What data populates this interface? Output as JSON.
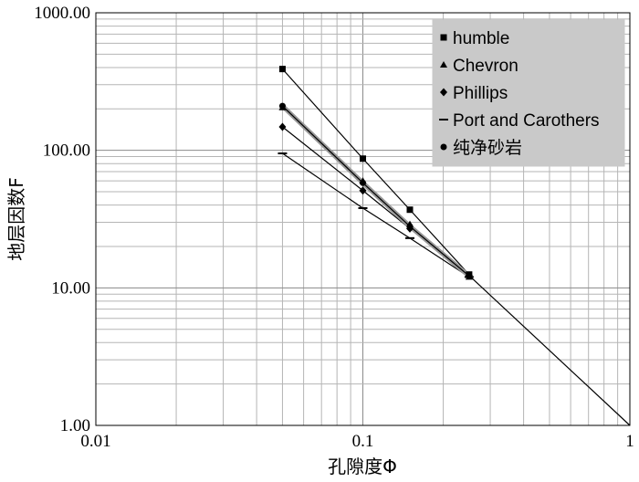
{
  "chart_data": {
    "type": "line",
    "xscale": "log",
    "yscale": "log",
    "xlim": [
      0.01,
      1
    ],
    "ylim": [
      1,
      1000
    ],
    "xlabel": "孔隙度Φ",
    "ylabel": "地层因数F",
    "x_tick_labels": [
      "0.01",
      "0.1",
      "1"
    ],
    "y_tick_labels": [
      "1.00",
      "10.00",
      "100.00",
      "1000.00"
    ],
    "grid": true,
    "legend_position": "top-right",
    "series": [
      {
        "name": "humble",
        "marker": "square",
        "x": [
          0.05,
          0.1,
          0.15,
          0.25
        ],
        "y": [
          390,
          87,
          37,
          12.5
        ]
      },
      {
        "name": "Chevron",
        "marker": "triangle",
        "x": [
          0.05,
          0.1,
          0.15,
          0.25
        ],
        "y": [
          205,
          60,
          29,
          12
        ]
      },
      {
        "name": "Phillips",
        "marker": "diamond",
        "x": [
          0.05,
          0.1,
          0.15,
          0.25
        ],
        "y": [
          148,
          51,
          27,
          12.3
        ]
      },
      {
        "name": "Port and Carothers",
        "marker": "dash",
        "x": [
          0.05,
          0.1,
          0.15,
          0.25
        ],
        "y": [
          95,
          38,
          23,
          12
        ]
      },
      {
        "name": "纯净砂岩",
        "marker": "circle",
        "x": [
          0.05,
          0.1,
          0.15,
          0.25
        ],
        "y": [
          210,
          58,
          28,
          12.2
        ]
      }
    ]
  }
}
